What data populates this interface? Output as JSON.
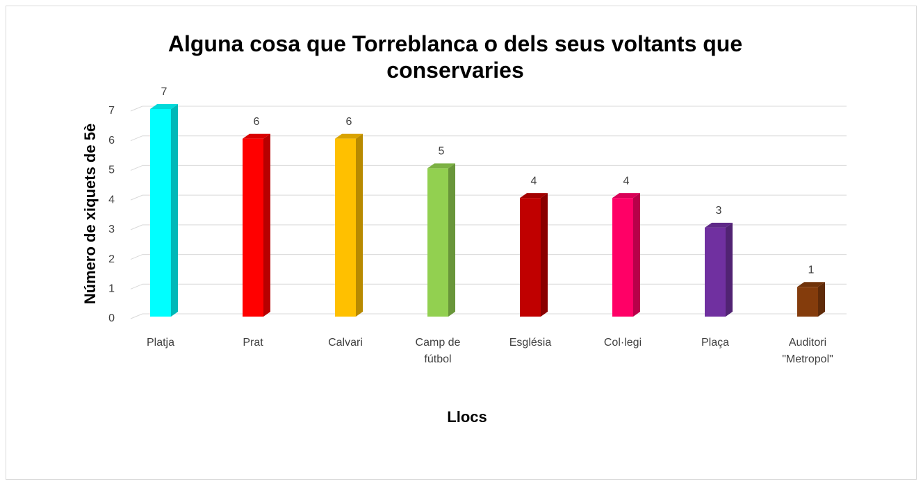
{
  "chart_data": {
    "type": "bar3d",
    "title": "Alguna cosa que Torreblanca o dels seus voltants que conservaries",
    "x_label": "Llocs",
    "y_label": "Número de xiquets de 5è",
    "categories": [
      "Platja",
      "Prat",
      "Calvari",
      "Camp de fútbol",
      "Església",
      "Col·legi",
      "Plaça",
      "Auditori \"Metropol\""
    ],
    "values": [
      7,
      6,
      6,
      5,
      4,
      4,
      3,
      1
    ],
    "colors": [
      "#00ffff",
      "#ff0000",
      "#ffc000",
      "#92d050",
      "#c00000",
      "#ff0066",
      "#7030a0",
      "#843c0c"
    ],
    "ylim": [
      0,
      7
    ],
    "yticks": [
      0,
      1,
      2,
      3,
      4,
      5,
      6,
      7
    ],
    "grid": true
  }
}
